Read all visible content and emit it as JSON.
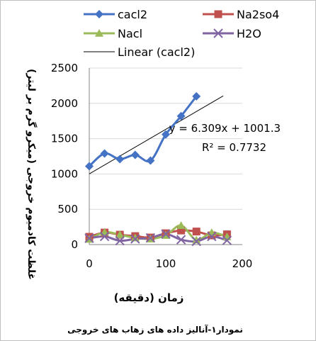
{
  "chart_data": {
    "type": "line",
    "title": "",
    "xlabel": "زمان (دقیقه)",
    "ylabel": "غلظت کادمیوم خروجی (میکرو گرم بر لیتر)",
    "xlim": [
      0,
      200
    ],
    "ylim": [
      0,
      2500
    ],
    "x_ticks": [
      "0",
      "100",
      "200"
    ],
    "y_ticks": [
      "0",
      "500",
      "1000",
      "1500",
      "2000",
      "2500"
    ],
    "grid": true,
    "legend_position": "top",
    "series": [
      {
        "name": "cacl2",
        "color": "#4472C4",
        "marker": "diamond",
        "smooth": true,
        "x": [
          0,
          20,
          40,
          60,
          80,
          100,
          120,
          140
        ],
        "y": [
          1110,
          1290,
          1210,
          1270,
          1190,
          1560,
          1820,
          2100
        ]
      },
      {
        "name": "Na2so4",
        "color": "#C0504D",
        "marker": "square",
        "smooth": true,
        "x": [
          0,
          20,
          40,
          60,
          80,
          100,
          120,
          140,
          160,
          180
        ],
        "y": [
          110,
          170,
          140,
          120,
          100,
          160,
          200,
          185,
          130,
          145
        ]
      },
      {
        "name": "Nacl",
        "color": "#9BBB59",
        "marker": "triangle",
        "smooth": true,
        "x": [
          0,
          20,
          40,
          60,
          80,
          100,
          120,
          140,
          160,
          180
        ],
        "y": [
          75,
          175,
          140,
          95,
          80,
          130,
          270,
          65,
          170,
          110
        ]
      },
      {
        "name": "H2O",
        "color": "#8064A2",
        "marker": "x",
        "smooth": true,
        "x": [
          0,
          20,
          40,
          60,
          80,
          100,
          120,
          140,
          160,
          180
        ],
        "y": [
          90,
          115,
          55,
          80,
          95,
          150,
          70,
          45,
          115,
          60
        ]
      }
    ],
    "trendline": {
      "name": "Linear (cacl2)",
      "color": "#000000",
      "slope": 6.309,
      "intercept": 1001.3,
      "x_range": [
        0,
        175
      ]
    },
    "annotations": {
      "equation": "y = 6.309x + 1001.3",
      "r_squared": "R² = 0.7732"
    }
  },
  "caption": "نمودار۱-آنالیز داده های زهاب های خروجی"
}
